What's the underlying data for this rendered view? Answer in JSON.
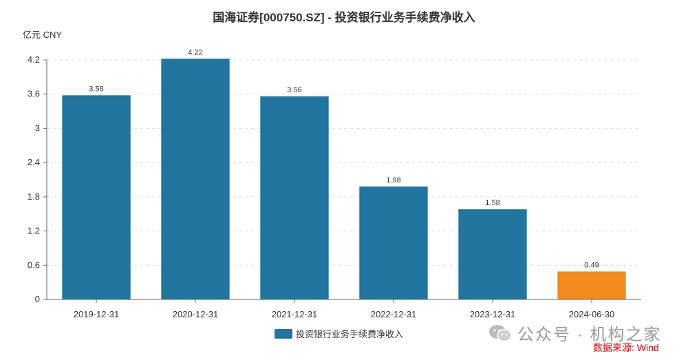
{
  "chart_data": {
    "type": "bar",
    "title": "国海证券[000750.SZ] - 投资银行业务手续费净收入",
    "unit": "亿元  CNY",
    "categories": [
      "2019-12-31",
      "2020-12-31",
      "2021-12-31",
      "2022-12-31",
      "2023-12-31",
      "2024-06-30"
    ],
    "series": [
      {
        "name": "投资银行业务手续费净收入",
        "values": [
          3.58,
          4.22,
          3.56,
          1.98,
          1.58,
          0.49
        ]
      }
    ],
    "data_labels": [
      "3.58",
      "4.22",
      "3.56",
      "1.98",
      "1.58",
      "0.49"
    ],
    "y_ticks": [
      "0",
      "0.6",
      "1.2",
      "1.8",
      "2.4",
      "3",
      "3.6",
      "4.2"
    ],
    "ylim": [
      0,
      4.2
    ],
    "grid": true,
    "legend": "bottom-center",
    "colors": {
      "bar": "#21759f",
      "highlight": "#f58a1f",
      "grid": "#dddddd"
    },
    "highlight_index": 5
  },
  "watermark": {
    "icon": "wechat-icon",
    "text": "公众号 · 机构之家"
  },
  "source": "数据来源: Wind"
}
